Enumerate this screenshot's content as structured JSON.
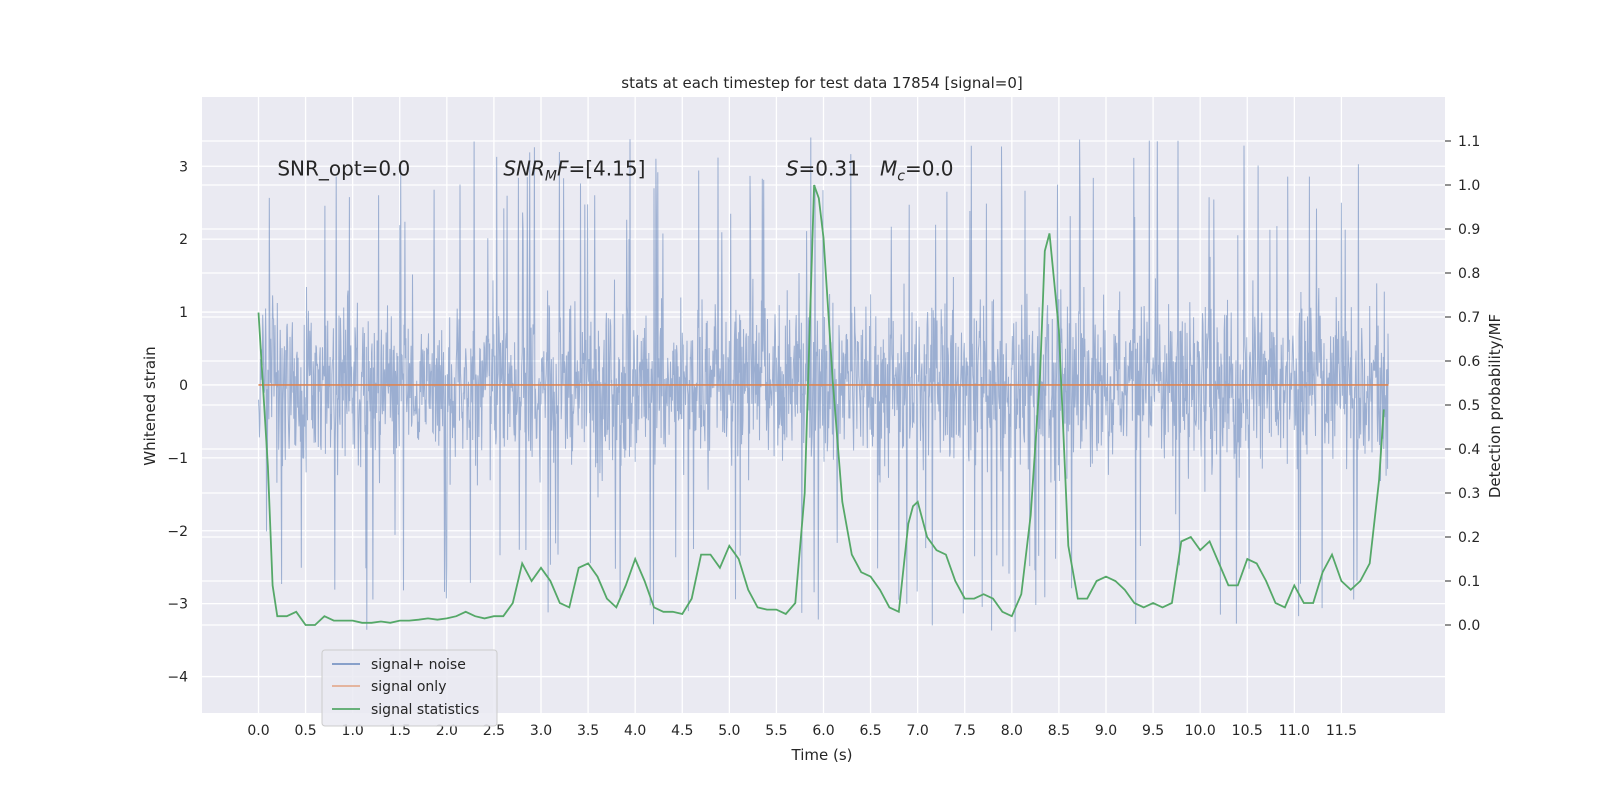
{
  "chart_data": {
    "type": "line",
    "title": "stats at each timestep for test data 17854 [signal=0]",
    "xlabel": "Time (s)",
    "ylabel_left": "Whitened strain",
    "ylabel_right": "Detection probability/MF",
    "xlim": [
      -0.6,
      12.6
    ],
    "ylim_left": [
      -4.5,
      3.95
    ],
    "ylim_right": [
      -0.2,
      1.2
    ],
    "x_ticks": [
      0.0,
      0.5,
      1.0,
      1.5,
      2.0,
      2.5,
      3.0,
      3.5,
      4.0,
      4.5,
      5.0,
      5.5,
      6.0,
      6.5,
      7.0,
      7.5,
      8.0,
      8.5,
      9.0,
      9.5,
      10.0,
      10.5,
      11.0,
      11.5
    ],
    "x_tick_labels": [
      "0.0",
      "0.5",
      "1.0",
      "1.5",
      "2.0",
      "2.5",
      "3.0",
      "3.5",
      "4.0",
      "4.5",
      "5.0",
      "5.5",
      "6.0",
      "6.5",
      "7.0",
      "7.5",
      "8.0",
      "8.5",
      "9.0",
      "9.5",
      "10.0",
      "10.5",
      "11.0",
      "11.5"
    ],
    "y_left_ticks": [
      3,
      2,
      1,
      0,
      -1,
      -2,
      -3,
      -4
    ],
    "y_left_tick_labels": [
      "3",
      "2",
      "1",
      "0",
      "−1",
      "−2",
      "−3",
      "−4"
    ],
    "y_right_ticks": [
      1.1,
      1.0,
      0.9,
      0.8,
      0.7,
      0.6,
      0.5,
      0.4,
      0.3,
      0.2,
      0.1,
      0.0
    ],
    "y_right_tick_labels": [
      "1.1",
      "1.0",
      "0.9",
      "0.8",
      "0.7",
      "0.6",
      "0.5",
      "0.4",
      "0.3",
      "0.2",
      "0.1",
      "0.0"
    ],
    "grid": true,
    "legend_position": "lower-left",
    "annotations": [
      {
        "text": "SNR_opt=0.0",
        "x": 0.2,
        "y": 2.87
      },
      {
        "text": "SNR_MF=[4.15]",
        "x": 2.6,
        "y": 2.87
      },
      {
        "text": "S=0.31",
        "x": 5.6,
        "y": 2.87
      },
      {
        "text": "M_c=0.0",
        "x": 6.6,
        "y": 2.87
      }
    ],
    "series": [
      {
        "name": "signal+ noise",
        "axis": "left",
        "color": "#4c72b0",
        "alpha": 0.5,
        "x_range": [
          0.0,
          12.0
        ],
        "envelope_top_approx": 2.2,
        "envelope_bottom_approx": -2.0,
        "y_max": 3.62,
        "y_min": -4.05
      },
      {
        "name": "signal only",
        "axis": "left",
        "color": "#dd8452",
        "x_range": [
          0.0,
          12.0
        ],
        "y": 0.0
      },
      {
        "name": "signal statistics",
        "axis": "right",
        "color": "#55a868",
        "x": [
          0.0,
          0.1,
          0.15,
          0.2,
          0.25,
          0.3,
          0.4,
          0.5,
          0.55,
          0.6,
          0.7,
          0.8,
          0.9,
          1.0,
          1.1,
          1.2,
          1.3,
          1.4,
          1.5,
          1.6,
          1.7,
          1.8,
          1.9,
          2.0,
          2.1,
          2.2,
          2.3,
          2.4,
          2.5,
          2.6,
          2.7,
          2.8,
          2.9,
          3.0,
          3.1,
          3.2,
          3.3,
          3.4,
          3.5,
          3.6,
          3.7,
          3.8,
          3.9,
          4.0,
          4.1,
          4.2,
          4.3,
          4.4,
          4.5,
          4.6,
          4.7,
          4.8,
          4.9,
          5.0,
          5.1,
          5.2,
          5.3,
          5.4,
          5.5,
          5.6,
          5.7,
          5.8,
          5.9,
          5.95,
          6.0,
          6.1,
          6.2,
          6.3,
          6.4,
          6.5,
          6.6,
          6.7,
          6.8,
          6.9,
          6.95,
          7.0,
          7.1,
          7.2,
          7.3,
          7.4,
          7.5,
          7.6,
          7.7,
          7.8,
          7.9,
          8.0,
          8.1,
          8.2,
          8.3,
          8.35,
          8.4,
          8.5,
          8.6,
          8.7,
          8.8,
          8.9,
          9.0,
          9.1,
          9.2,
          9.3,
          9.4,
          9.5,
          9.6,
          9.7,
          9.8,
          9.9,
          10.0,
          10.1,
          10.2,
          10.3,
          10.4,
          10.5,
          10.6,
          10.7,
          10.8,
          10.9,
          11.0,
          11.1,
          11.2,
          11.3,
          11.4,
          11.5,
          11.6,
          11.7,
          11.8,
          11.9,
          11.95
        ],
        "y": [
          0.71,
          0.36,
          0.09,
          0.02,
          0.02,
          0.02,
          0.03,
          0.0,
          0.0,
          0.0,
          0.02,
          0.01,
          0.01,
          0.01,
          0.005,
          0.005,
          0.008,
          0.005,
          0.01,
          0.01,
          0.012,
          0.015,
          0.012,
          0.015,
          0.02,
          0.03,
          0.02,
          0.015,
          0.02,
          0.02,
          0.05,
          0.14,
          0.1,
          0.13,
          0.1,
          0.05,
          0.04,
          0.13,
          0.14,
          0.11,
          0.06,
          0.04,
          0.09,
          0.15,
          0.1,
          0.04,
          0.03,
          0.03,
          0.025,
          0.06,
          0.16,
          0.16,
          0.13,
          0.18,
          0.15,
          0.08,
          0.04,
          0.035,
          0.035,
          0.025,
          0.05,
          0.3,
          1.0,
          0.97,
          0.88,
          0.55,
          0.28,
          0.16,
          0.12,
          0.11,
          0.08,
          0.04,
          0.03,
          0.23,
          0.27,
          0.28,
          0.2,
          0.17,
          0.16,
          0.1,
          0.06,
          0.06,
          0.07,
          0.06,
          0.03,
          0.02,
          0.07,
          0.25,
          0.57,
          0.85,
          0.89,
          0.67,
          0.18,
          0.06,
          0.06,
          0.1,
          0.11,
          0.1,
          0.08,
          0.05,
          0.04,
          0.05,
          0.04,
          0.05,
          0.19,
          0.2,
          0.17,
          0.19,
          0.14,
          0.09,
          0.09,
          0.15,
          0.14,
          0.1,
          0.05,
          0.04,
          0.09,
          0.05,
          0.05,
          0.12,
          0.16,
          0.1,
          0.08,
          0.1,
          0.14,
          0.33,
          0.49
        ]
      }
    ]
  }
}
